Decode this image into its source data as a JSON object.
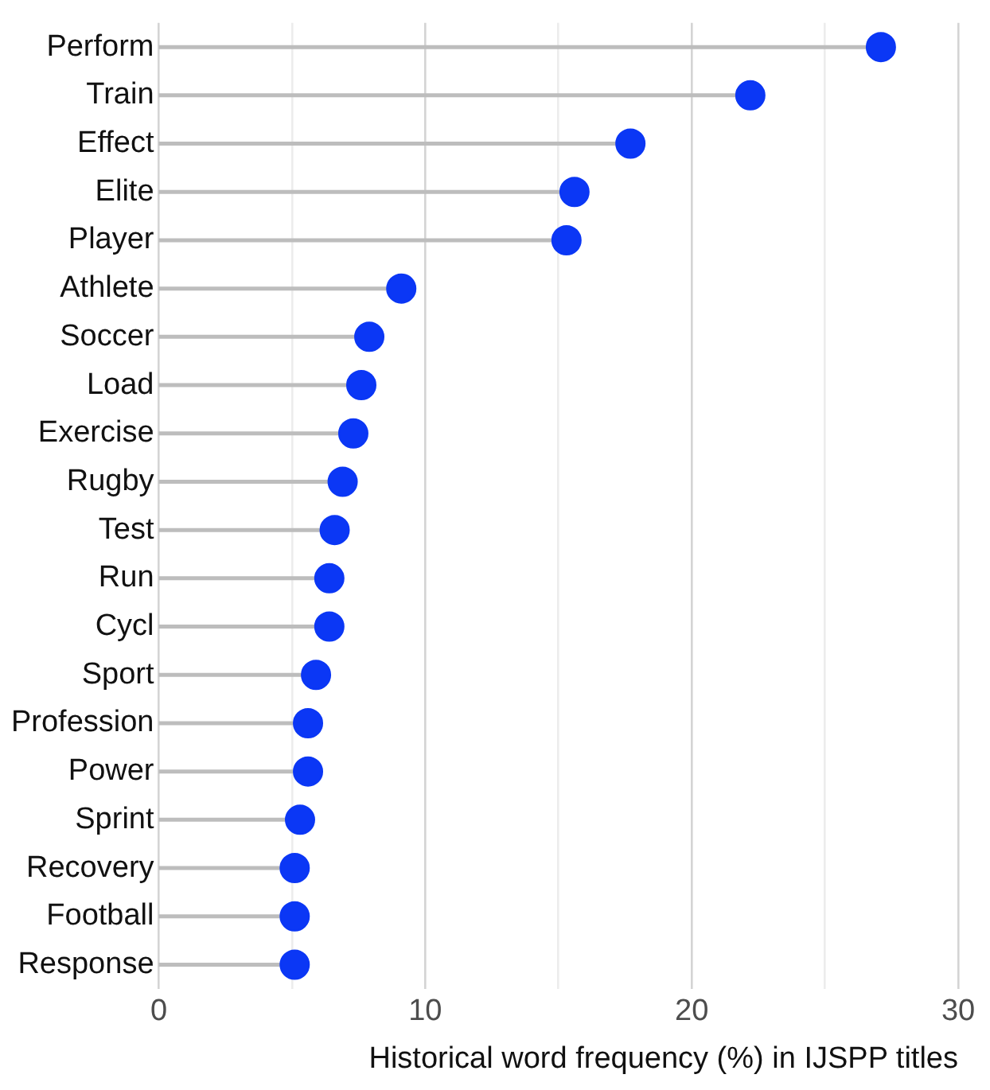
{
  "chart_data": {
    "type": "lollipop",
    "orientation": "horizontal",
    "xlabel": "Historical word frequency (%) in IJSPP titles",
    "categories": [
      "Perform",
      "Train",
      "Effect",
      "Elite",
      "Player",
      "Athlete",
      "Soccer",
      "Load",
      "Exercise",
      "Rugby",
      "Test",
      "Run",
      "Cycl",
      "Sport",
      "Profession",
      "Power",
      "Sprint",
      "Recovery",
      "Football",
      "Response"
    ],
    "values": [
      27.1,
      22.2,
      17.7,
      15.6,
      15.3,
      9.1,
      7.9,
      7.6,
      7.3,
      6.9,
      6.6,
      6.4,
      6.4,
      5.9,
      5.6,
      5.6,
      5.3,
      5.1,
      5.1,
      5.1
    ],
    "color": "#0b37f5",
    "xlim": [
      0,
      30
    ],
    "xticks": [
      0,
      {
        "value": 5,
        "label": null
      },
      10,
      {
        "value": 15,
        "label": null
      },
      20,
      {
        "value": 25,
        "label": null
      },
      30
    ],
    "grid": "x",
    "marker": "circle",
    "legend": false
  }
}
